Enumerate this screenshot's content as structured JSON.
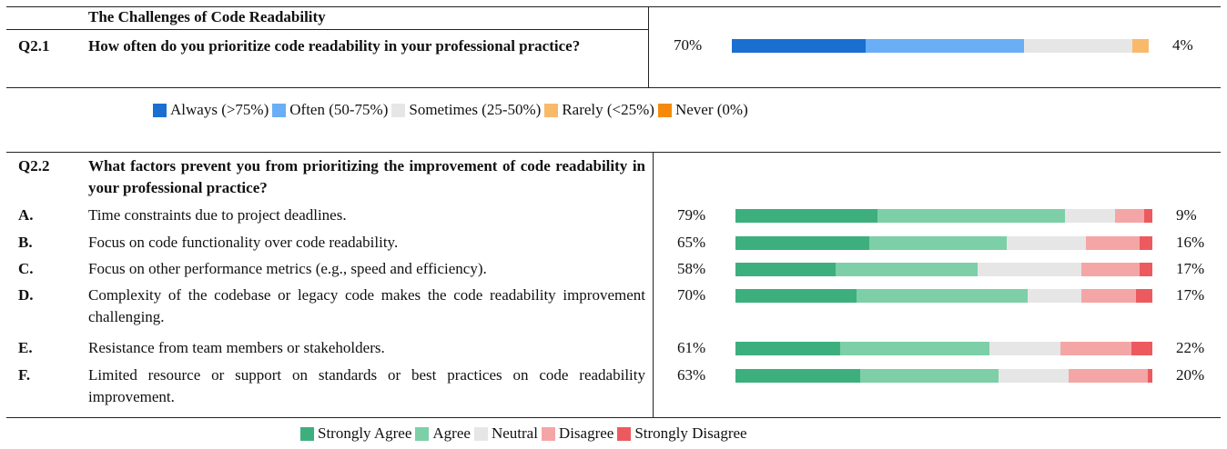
{
  "section1": {
    "title": "The Challenges of Code Readability",
    "question": {
      "id": "Q2.1",
      "text": "How often do you prioritize code readability in your professional practice?",
      "left_label": "70%",
      "right_label": "4%",
      "segments": [
        32,
        38,
        26,
        4,
        0
      ]
    },
    "legend": [
      {
        "name": "Always (>75%)",
        "color": "#1a6fd0"
      },
      {
        "name": "Often (50-75%)",
        "color": "#6aaef5"
      },
      {
        "name": "Sometimes (25-50%)",
        "color": "#e6e6e6"
      },
      {
        "name": "Rarely (<25%)",
        "color": "#f9b96a"
      },
      {
        "name": "Never (0%)",
        "color": "#f58a0a"
      }
    ]
  },
  "section2": {
    "question": {
      "id": "Q2.2",
      "text": "What factors prevent you from prioritizing the improvement of code readability in your professional practice?"
    },
    "items": [
      {
        "id": "A.",
        "text": "Time constraints due to project deadlines.",
        "left_label": "79%",
        "right_label": "9%",
        "segments": [
          34,
          45,
          12,
          7,
          2
        ]
      },
      {
        "id": "B.",
        "text": "Focus on code functionality over code readability.",
        "left_label": "65%",
        "right_label": "16%",
        "segments": [
          32,
          33,
          19,
          13,
          3
        ]
      },
      {
        "id": "C.",
        "text": "Focus on other performance metrics (e.g., speed and efficiency).",
        "left_label": "58%",
        "right_label": "17%",
        "segments": [
          24,
          34,
          25,
          14,
          3
        ]
      },
      {
        "id": "D.",
        "text": "Complexity of the codebase or legacy code makes the code readability improvement challenging.",
        "left_label": "70%",
        "right_label": "17%",
        "segments": [
          29,
          41,
          13,
          13,
          4
        ]
      },
      {
        "id": "E.",
        "text": "Resistance from team members or stakeholders.",
        "left_label": "61%",
        "right_label": "22%",
        "segments": [
          25,
          36,
          17,
          17,
          5
        ]
      },
      {
        "id": "F.",
        "text": "Limited resource or support on standards or best practices on code readability improvement.",
        "left_label": "63%",
        "right_label": "20%",
        "segments": [
          30,
          33,
          17,
          19,
          1
        ]
      }
    ],
    "legend": [
      {
        "name": "Strongly Agree",
        "color": "#3daf7e"
      },
      {
        "name": "Agree",
        "color": "#7dcfa7"
      },
      {
        "name": "Neutral",
        "color": "#e6e6e6"
      },
      {
        "name": "Disagree",
        "color": "#f4a6a6"
      },
      {
        "name": "Strongly Disagree",
        "color": "#ec5a5f"
      }
    ]
  }
}
